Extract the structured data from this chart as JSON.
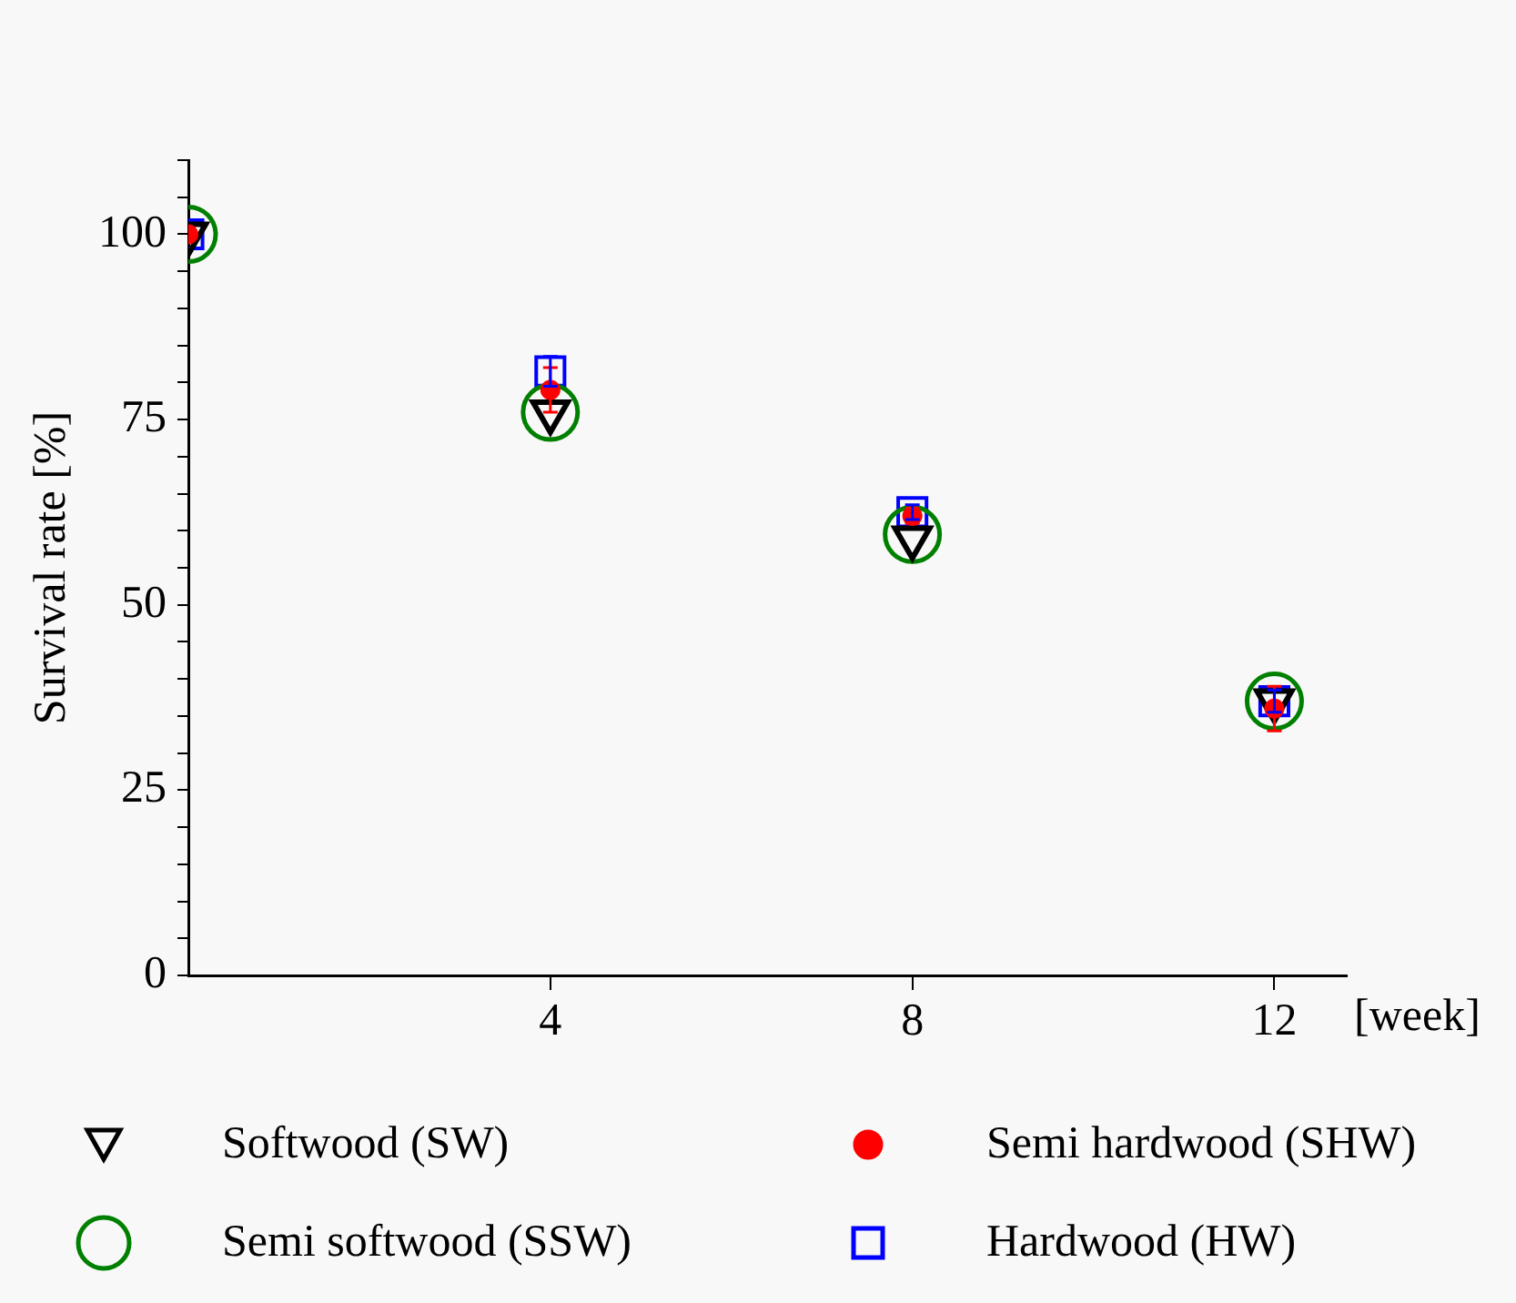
{
  "chart_data": {
    "type": "scatter",
    "xlabel": "[week]",
    "ylabel": "Survival rate [%]",
    "xlim": [
      0,
      12.8
    ],
    "xticks": [
      4,
      8,
      12
    ],
    "ylim": [
      0,
      110
    ],
    "yticks": [
      0,
      {
        "value": 5,
        "label": null
      },
      {
        "value": 10,
        "label": null
      },
      {
        "value": 15,
        "label": null
      },
      {
        "value": 20,
        "label": null
      },
      25,
      {
        "value": 30,
        "label": null
      },
      {
        "value": 35,
        "label": null
      },
      {
        "value": 40,
        "label": null
      },
      {
        "value": 45,
        "label": null
      },
      50,
      {
        "value": 55,
        "label": null
      },
      {
        "value": 60,
        "label": null
      },
      {
        "value": 65,
        "label": null
      },
      {
        "value": 70,
        "label": null
      },
      75,
      {
        "value": 80,
        "label": null
      },
      {
        "value": 85,
        "label": null
      },
      {
        "value": 90,
        "label": null
      },
      {
        "value": 95,
        "label": null
      },
      100,
      {
        "value": 105,
        "label": null
      },
      {
        "value": 110,
        "label": null
      }
    ],
    "x": [
      0,
      4,
      8,
      12
    ],
    "grid": false,
    "legend": "bottom",
    "series": [
      {
        "name": "Softwood (SW)",
        "color": "#000000",
        "marker": "triangle",
        "values": [
          100,
          76,
          59,
          37
        ]
      },
      {
        "name": "Semi hardwood (SHW)",
        "color": "#ff0000",
        "marker": "circle",
        "values": [
          100,
          79,
          62,
          36
        ],
        "errors": [
          null,
          3,
          1,
          3
        ]
      },
      {
        "name": "Semi softwood (SSW)",
        "color": "#008000",
        "marker": "circle",
        "values": [
          100,
          76,
          59.5,
          37
        ]
      },
      {
        "name": "Hardwood (HW)",
        "color": "#0000ff",
        "marker": "square",
        "values": [
          100,
          81.5,
          62.5,
          37
        ],
        "errors": [
          null,
          2,
          1,
          1.5
        ]
      }
    ]
  }
}
